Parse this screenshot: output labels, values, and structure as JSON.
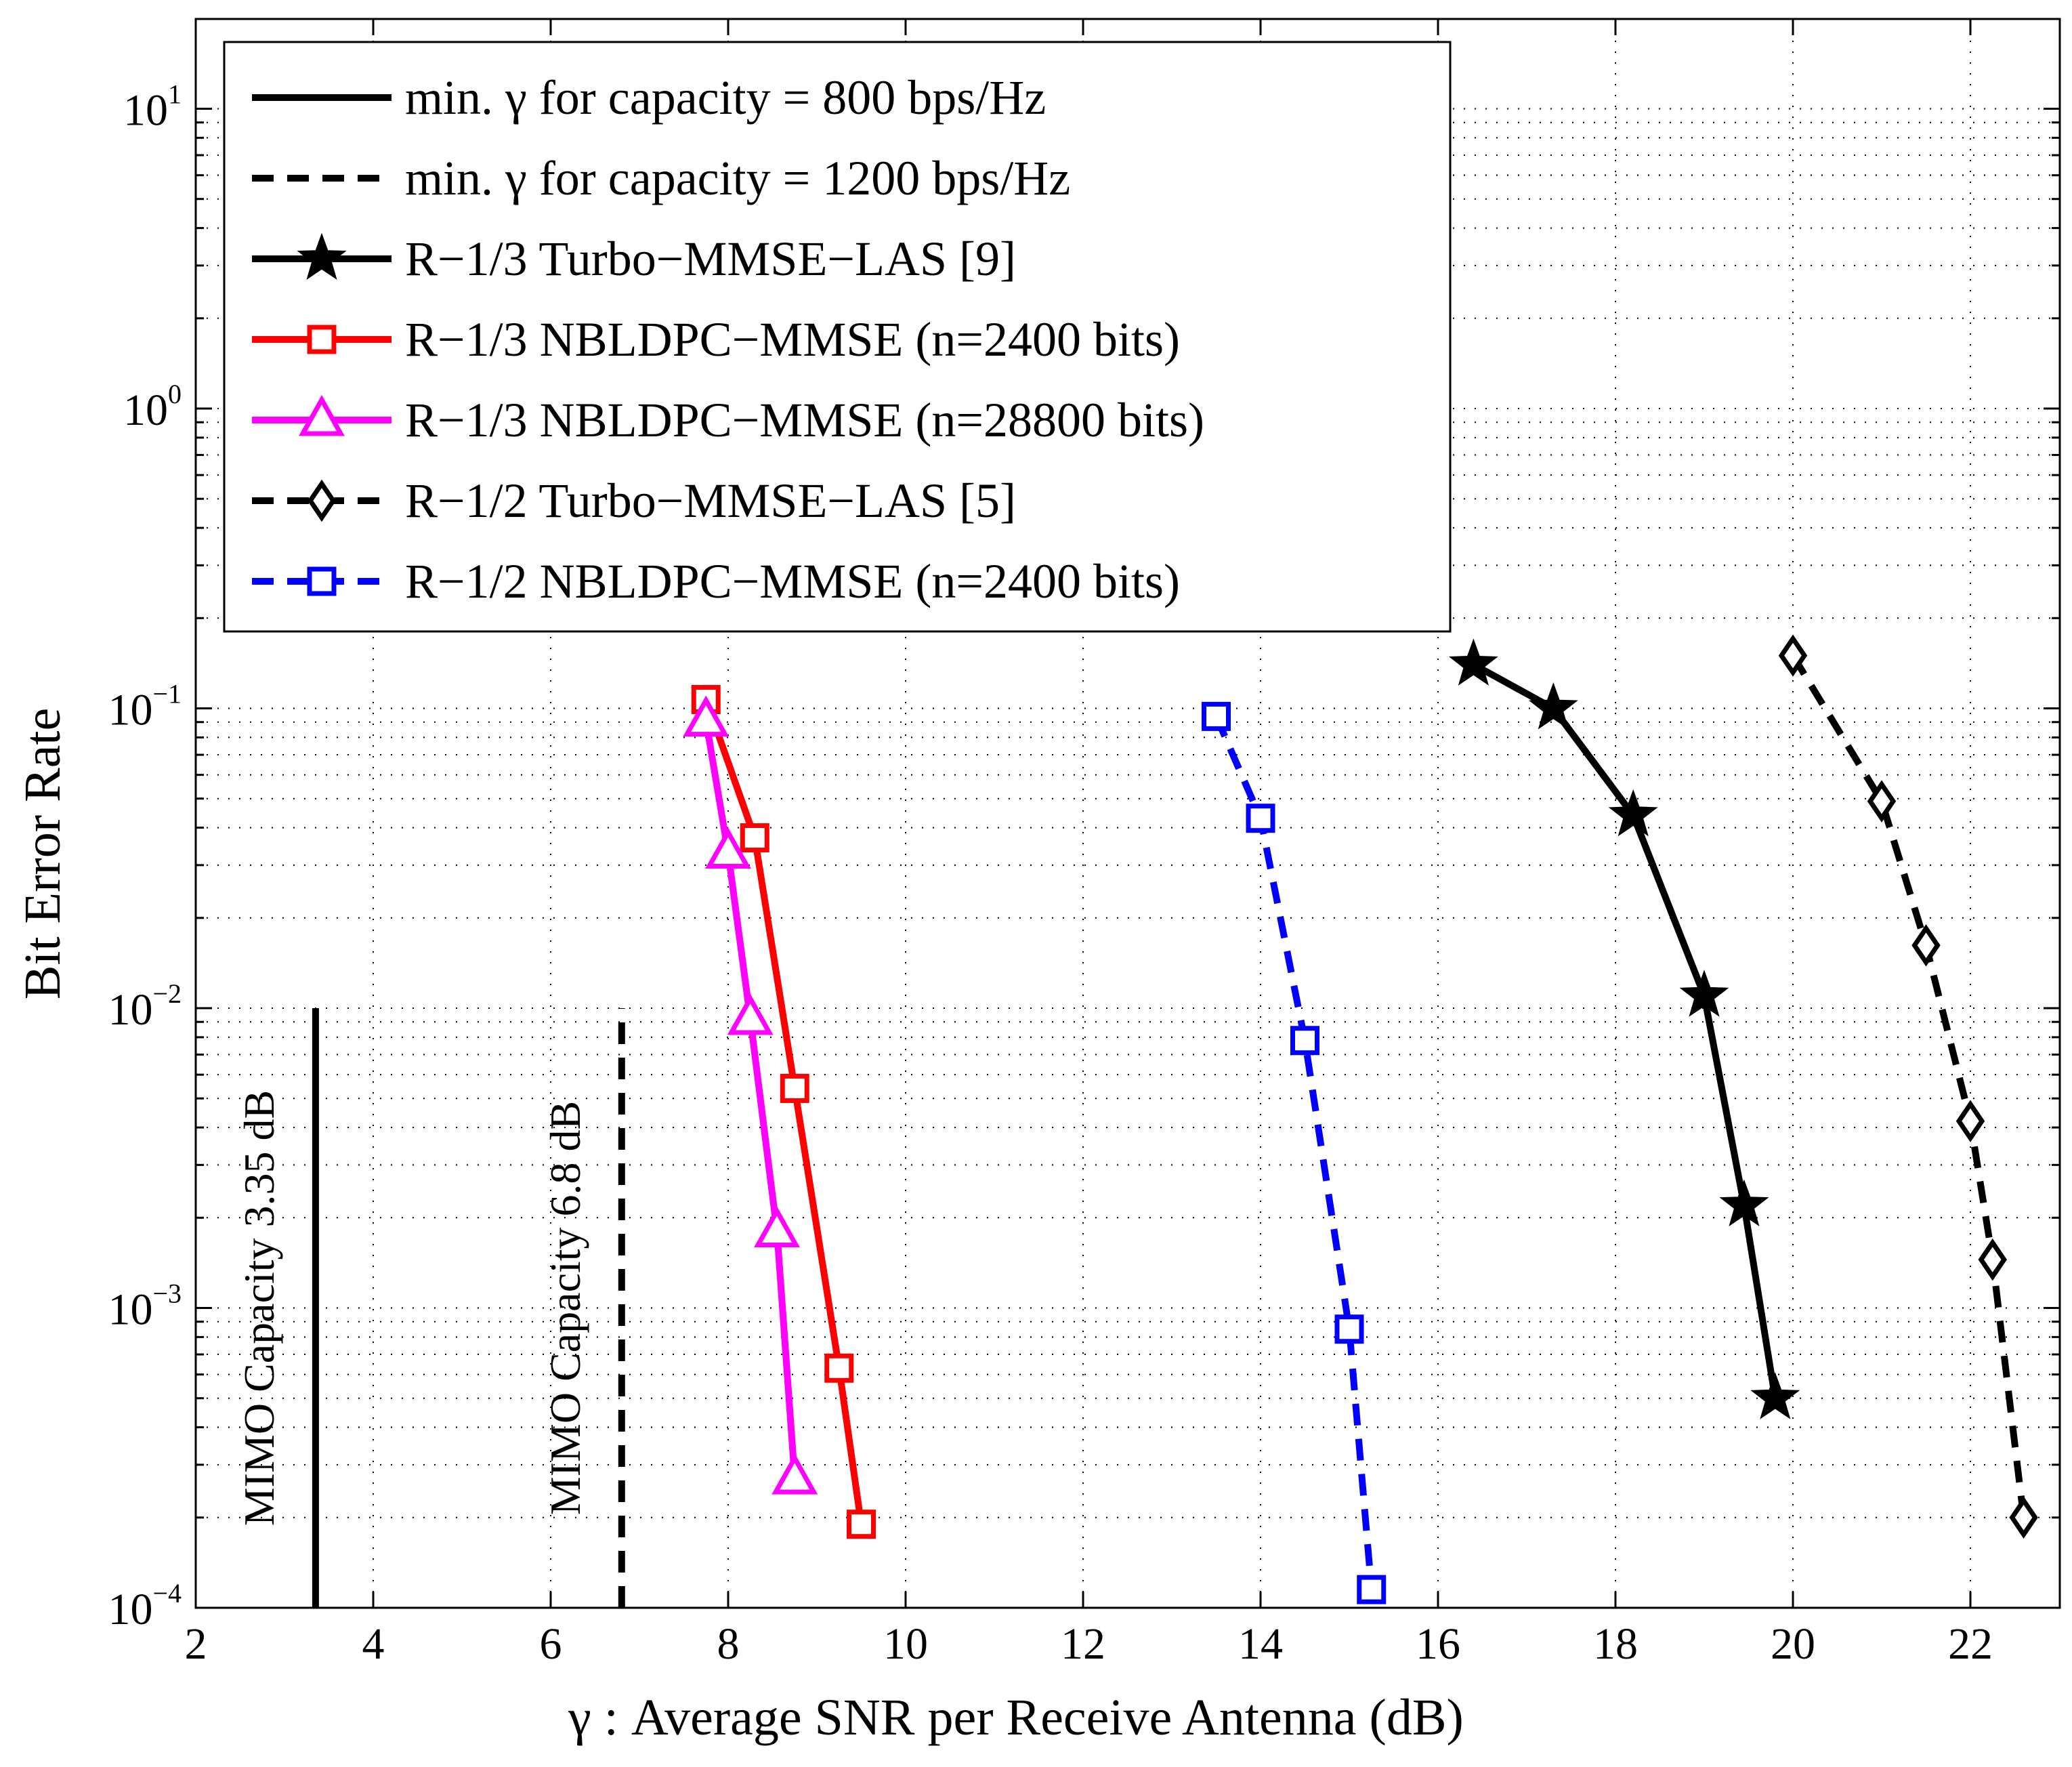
{
  "chart_data": {
    "type": "line",
    "xlabel": "γ : Average SNR per Receive Antenna (dB)",
    "ylabel": "Bit Error Rate",
    "xlim": [
      2,
      23
    ],
    "ylim": [
      0.0001,
      20
    ],
    "yscale": "log",
    "grid": true,
    "legend_position": "top-left",
    "x_ticks": [
      2,
      4,
      6,
      8,
      10,
      12,
      14,
      16,
      18,
      20,
      22
    ],
    "y_ticks": [
      {
        "value": 0.0001,
        "base": "10",
        "exp": "−4"
      },
      {
        "value": 0.001,
        "base": "10",
        "exp": "−3"
      },
      {
        "value": 0.01,
        "base": "10",
        "exp": "−2"
      },
      {
        "value": 0.1,
        "base": "10",
        "exp": "−1"
      },
      {
        "value": 1,
        "base": "10",
        "exp": "0"
      },
      {
        "value": 10,
        "base": "10",
        "exp": "1"
      }
    ],
    "series": [
      {
        "name": "min. γ for capacity = 800 bps/Hz",
        "color": "#000000",
        "dashed": false,
        "marker": "none",
        "x": [
          3.35,
          3.35
        ],
        "y": [
          0.0001,
          0.01
        ]
      },
      {
        "name": "min. γ for capacity = 1200 bps/Hz",
        "color": "#000000",
        "dashed": true,
        "marker": "none",
        "x": [
          6.8,
          6.8
        ],
        "y": [
          0.0001,
          0.01
        ]
      },
      {
        "name": "R−1/3 Turbo−MMSE−LAS [9]",
        "color": "#000000",
        "dashed": false,
        "marker": "star",
        "x": [
          16.4,
          17.3,
          18.2,
          19.0,
          19.45,
          19.8
        ],
        "y": [
          0.14,
          0.1,
          0.044,
          0.011,
          0.0022,
          0.0005
        ]
      },
      {
        "name": "R−1/3 NBLDPC−MMSE (n=2400 bits)",
        "color": "#ff0000",
        "dashed": false,
        "marker": "square",
        "x": [
          7.75,
          8.3,
          8.75,
          9.25,
          9.5
        ],
        "y": [
          0.107,
          0.037,
          0.0054,
          0.00063,
          0.00019
        ]
      },
      {
        "name": "R−1/3 NBLDPC−MMSE (n=28800 bits)",
        "color": "#ff00ff",
        "dashed": false,
        "marker": "triangle",
        "x": [
          7.75,
          8.0,
          8.25,
          8.55,
          8.75
        ],
        "y": [
          0.091,
          0.033,
          0.0092,
          0.0018,
          0.00027
        ]
      },
      {
        "name": "R−1/2 Turbo−MMSE−LAS [5]",
        "color": "#000000",
        "dashed": true,
        "marker": "diamond",
        "x": [
          20.0,
          21.0,
          21.5,
          22.0,
          22.25,
          22.6
        ],
        "y": [
          0.15,
          0.049,
          0.0162,
          0.0042,
          0.00145,
          0.0002
        ]
      },
      {
        "name": "R−1/2 NBLDPC−MMSE (n=2400 bits)",
        "color": "#0000ff",
        "dashed": true,
        "marker": "square",
        "x": [
          13.5,
          14.0,
          14.5,
          15.0,
          15.25
        ],
        "y": [
          0.094,
          0.043,
          0.0078,
          0.00085,
          0.000115
        ]
      }
    ],
    "annotations": [
      {
        "text": "MIMO Capacity 3.35 dB",
        "x": 3.35,
        "y": 0.001,
        "rotation": -90
      },
      {
        "text": "MIMO Capacity 6.8 dB",
        "x": 6.8,
        "y": 0.001,
        "rotation": -90
      }
    ]
  }
}
